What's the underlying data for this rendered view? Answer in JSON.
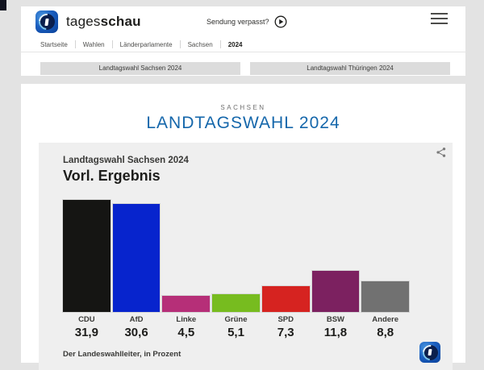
{
  "header": {
    "brand": {
      "regular": "tages",
      "bold": "schau"
    },
    "sendung_verpasst_label": "Sendung verpasst?"
  },
  "breadcrumb": {
    "items": [
      {
        "label": "Startseite",
        "current": false
      },
      {
        "label": "Wahlen",
        "current": false
      },
      {
        "label": "Länderparlamente",
        "current": false
      },
      {
        "label": "Sachsen",
        "current": false
      },
      {
        "label": "2024",
        "current": true
      }
    ]
  },
  "nav_buttons": [
    {
      "label": "Landtagswahl Sachsen 2024"
    },
    {
      "label": "Landtagswahl Thüringen 2024"
    }
  ],
  "main": {
    "kicker": "SACHSEN",
    "title": "LANDTAGSWAHL 2024",
    "accent_color": "#1567ab"
  },
  "chart_card": {
    "subtitle": "Landtagswahl Sachsen 2024",
    "title": "Vorl. Ergebnis",
    "source_note": "Der Landeswahlleiter, in Prozent"
  },
  "chart_data": {
    "type": "bar",
    "title": "Vorl. Ergebnis",
    "subtitle": "Landtagswahl Sachsen 2024",
    "source": "Der Landeswahlleiter, in Prozent",
    "unit": "Prozent",
    "categories": [
      "CDU",
      "AfD",
      "Linke",
      "Grüne",
      "SPD",
      "BSW",
      "Andere"
    ],
    "values": [
      31.9,
      30.6,
      4.5,
      5.1,
      7.3,
      11.8,
      8.8
    ],
    "value_labels": [
      "31,9",
      "30,6",
      "4,5",
      "5,1",
      "7,3",
      "11,8",
      "8,8"
    ],
    "colors": [
      "#151513",
      "#0724cd",
      "#b62f78",
      "#77bc1f",
      "#d62320",
      "#7c2160",
      "#717171"
    ],
    "ylim": [
      0,
      33
    ],
    "grid": false,
    "legend": "none"
  }
}
